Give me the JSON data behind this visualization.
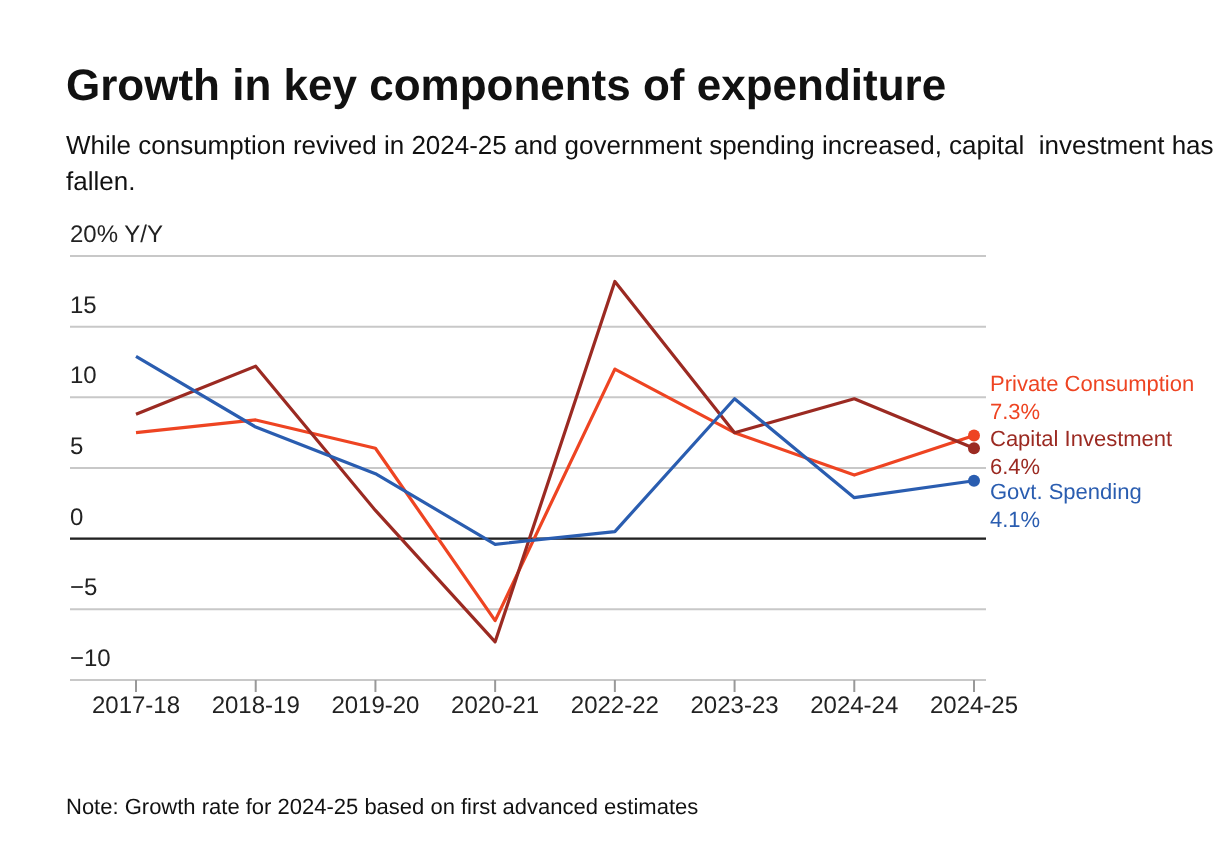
{
  "chart_data": {
    "type": "line",
    "title": "Growth in key components of expenditure",
    "subtitle": "While consumption revived in 2024-25 and government spending increased, capital  investment has fallen.",
    "categories": [
      "2017-18",
      "2018-19",
      "2019-20",
      "2020-21",
      "2022-22",
      "2023-23",
      "2024-24",
      "2024-25"
    ],
    "series": [
      {
        "name": "Private Consumption",
        "color": "#ee4422",
        "values": [
          7.5,
          8.4,
          6.4,
          -5.8,
          12.0,
          7.5,
          4.5,
          7.3
        ],
        "value_labels": [
          null,
          null,
          null,
          null,
          null,
          null,
          null,
          "7.3%"
        ]
      },
      {
        "name": "Capital Investment",
        "color": "#9b2a22",
        "values": [
          8.8,
          12.2,
          2.0,
          -7.3,
          18.2,
          7.5,
          9.9,
          6.4
        ],
        "value_labels": [
          null,
          null,
          null,
          null,
          null,
          null,
          null,
          "6.4%"
        ]
      },
      {
        "name": "Govt. Spending",
        "color": "#2a5db0",
        "values": [
          12.9,
          7.9,
          4.6,
          -0.4,
          0.5,
          9.9,
          2.9,
          4.1
        ],
        "value_labels": [
          null,
          null,
          null,
          null,
          null,
          null,
          null,
          "4.1%"
        ]
      }
    ],
    "ylim": [
      -10,
      20
    ],
    "yticks": [
      -10,
      -5,
      0,
      5,
      10,
      15,
      {
        "value": 20,
        "label": "20% Y/Y"
      }
    ],
    "grid": "y",
    "ref_lines": [
      {
        "axis": "y",
        "value": 0,
        "color": "#222222"
      }
    ],
    "annotations": [
      "Note: Growth rate for 2024-25 based on first advanced estimates"
    ]
  }
}
